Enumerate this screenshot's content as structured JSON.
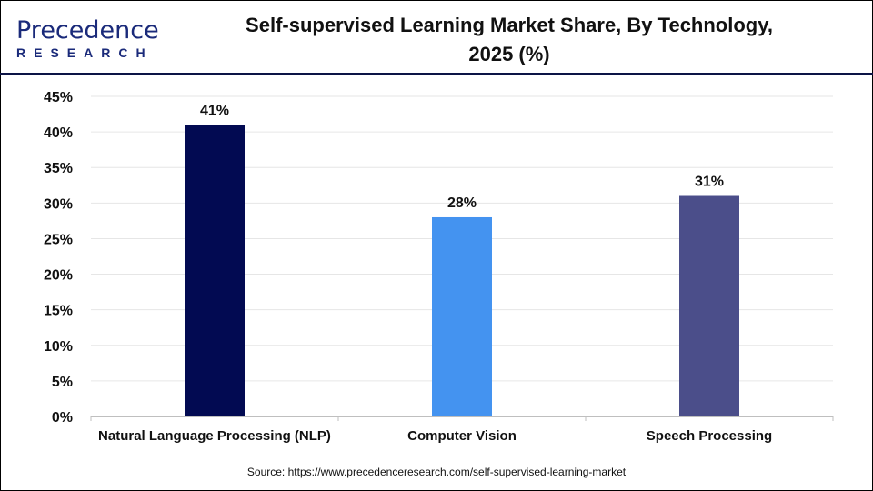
{
  "header": {
    "logo_main": "Precedence",
    "logo_sub": "RESEARCH",
    "title_line1": "Self-supervised Learning Market Share, By Technology,",
    "title_line2": "2025 (%)"
  },
  "source": "Source: https://www.precedenceresearch.com/self-supervised-learning-market",
  "chart_data": {
    "type": "bar",
    "title": "Self-supervised Learning Market Share, By Technology, 2025 (%)",
    "categories": [
      "Natural Language Processing (NLP)",
      "Computer Vision",
      "Speech Processing"
    ],
    "values": [
      41,
      28,
      31
    ],
    "data_labels": [
      "41%",
      "28%",
      "31%"
    ],
    "colors": [
      "#020a52",
      "#4493f0",
      "#4b4e8a"
    ],
    "ylim": [
      0,
      45
    ],
    "yticks": [
      "0%",
      "5%",
      "10%",
      "15%",
      "20%",
      "25%",
      "30%",
      "35%",
      "40%",
      "45%"
    ],
    "grid": true,
    "xlabel": "",
    "ylabel": ""
  }
}
